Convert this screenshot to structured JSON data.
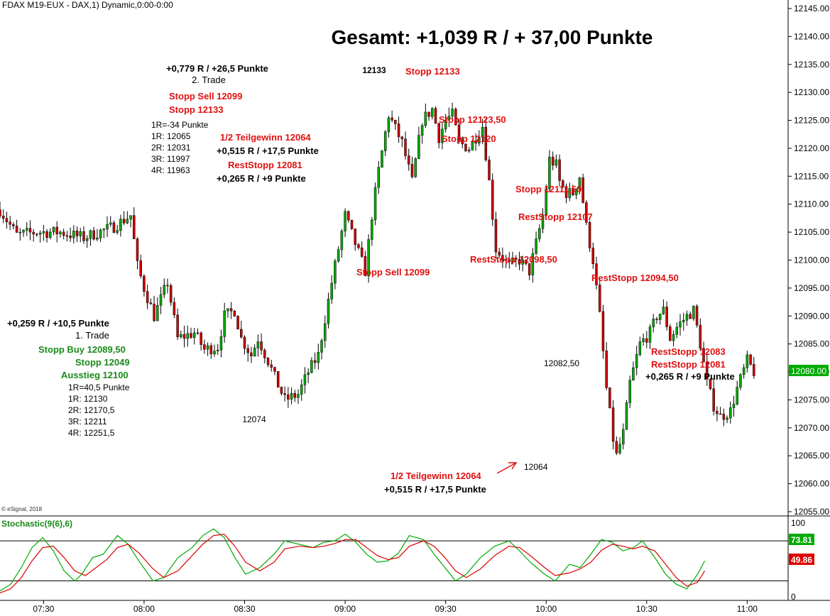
{
  "header": {
    "symbol_text": "FDAX M19-EUX - DAX,1) Dynamic,0:00-0:00"
  },
  "headline": "Gesamt: +1,039 R / + 37,00 Punkte",
  "copyright": "© eSignal, 2018",
  "colors": {
    "up": "#00aa00",
    "down": "#cc0000",
    "annot_red": "#e01010",
    "annot_green": "#1a8a1a",
    "badge": "#00aa00",
    "stoch_k": "#00aa00",
    "stoch_d": "#dd0000"
  },
  "chart_data": [
    {
      "type": "candlestick",
      "y_axis_ticks": [
        "12145.00",
        "12140.00",
        "12135.00",
        "12130.00",
        "12125.00",
        "12120.00",
        "12115.00",
        "12110.00",
        "12105.00",
        "12100.00",
        "12095.00",
        "12090.00",
        "12085.00",
        "12080.00",
        "12075.00",
        "12070.00",
        "12065.00",
        "12060.00",
        "12055.00"
      ],
      "x_axis_ticks": [
        "07:30",
        "08:00",
        "08:30",
        "09:00",
        "09:30",
        "10:00",
        "10:30",
        "11:00"
      ],
      "ylim": [
        12054,
        12146
      ],
      "x_range": [
        "07:17",
        "11:12"
      ],
      "current_price_badge": "12080.00",
      "anchors": [
        [
          "07:17",
          12109
        ],
        [
          "07:22",
          12104.5
        ],
        [
          "07:28",
          12105
        ],
        [
          "07:35",
          12105
        ],
        [
          "07:42",
          12104
        ],
        [
          "07:51",
          12106
        ],
        [
          "07:56",
          12108
        ],
        [
          "07:58",
          12099
        ],
        [
          "08:00",
          12095
        ],
        [
          "08:03",
          12090
        ],
        [
          "08:07",
          12096
        ],
        [
          "08:10",
          12086
        ],
        [
          "08:15",
          12087
        ],
        [
          "08:18",
          12084
        ],
        [
          "08:22",
          12084.5
        ],
        [
          "08:24",
          12090
        ],
        [
          "08:27",
          12091
        ],
        [
          "08:29",
          12086
        ],
        [
          "08:32",
          12083
        ],
        [
          "08:34",
          12086
        ],
        [
          "08:37",
          12082
        ],
        [
          "08:39",
          12079
        ],
        [
          "08:42",
          12075
        ],
        [
          "08:46",
          12076
        ],
        [
          "08:49",
          12080
        ],
        [
          "08:52",
          12083
        ],
        [
          "08:56",
          12096
        ],
        [
          "09:00",
          12108
        ],
        [
          "09:03",
          12103
        ],
        [
          "09:06",
          12098
        ],
        [
          "09:08",
          12108
        ],
        [
          "09:10",
          12116
        ],
        [
          "09:13",
          12126
        ],
        [
          "09:17",
          12121
        ],
        [
          "09:20",
          12114
        ],
        [
          "09:23",
          12125
        ],
        [
          "09:26",
          12127
        ],
        [
          "09:28",
          12122
        ],
        [
          "09:30",
          12125
        ],
        [
          "09:32",
          12126
        ],
        [
          "09:34",
          12121
        ],
        [
          "09:37",
          12120
        ],
        [
          "09:41",
          12124
        ],
        [
          "09:43",
          12114
        ],
        [
          "09:45",
          12102
        ],
        [
          "09:49",
          12099
        ],
        [
          "09:52",
          12100
        ],
        [
          "09:55",
          12098
        ],
        [
          "09:59",
          12108
        ],
        [
          "10:01",
          12118
        ],
        [
          "10:03",
          12117
        ],
        [
          "10:04",
          12114
        ],
        [
          "10:06",
          12112
        ],
        [
          "10:08",
          12112
        ],
        [
          "10:10",
          12115
        ],
        [
          "10:12",
          12106
        ],
        [
          "10:14",
          12100
        ],
        [
          "10:16",
          12090
        ],
        [
          "10:18",
          12077
        ],
        [
          "10:20",
          12068
        ],
        [
          "10:21",
          12065
        ],
        [
          "10:23",
          12069
        ],
        [
          "10:25",
          12078
        ],
        [
          "10:28",
          12085
        ],
        [
          "10:31",
          12087
        ],
        [
          "10:33",
          12090
        ],
        [
          "10:35",
          12091
        ],
        [
          "10:37",
          12086
        ],
        [
          "10:39",
          12088
        ],
        [
          "10:42",
          12090
        ],
        [
          "10:44",
          12091
        ],
        [
          "10:46",
          12085
        ],
        [
          "10:48",
          12078
        ],
        [
          "10:50",
          12074
        ],
        [
          "10:52",
          12072
        ],
        [
          "10:55",
          12073
        ],
        [
          "10:57",
          12077
        ],
        [
          "11:00",
          12082
        ],
        [
          "11:02",
          12080
        ]
      ]
    },
    {
      "type": "line",
      "title": "Stochastic(9(6),6)",
      "y_axis_ticks": [
        "100",
        "0"
      ],
      "ylim": [
        -5,
        110
      ],
      "reference_lines": [
        80,
        20
      ],
      "last_values": [
        "73.81",
        "49.86"
      ],
      "series": [
        {
          "values": [
            [
              0,
              5
            ],
            [
              6,
              15
            ],
            [
              12,
              40
            ],
            [
              18,
              70
            ],
            [
              24,
              85
            ],
            [
              30,
              65
            ],
            [
              36,
              35
            ],
            [
              42,
              20
            ],
            [
              46,
              30
            ],
            [
              52,
              55
            ],
            [
              58,
              60
            ],
            [
              66,
              88
            ],
            [
              72,
              75
            ],
            [
              78,
              50
            ],
            [
              86,
              20
            ],
            [
              92,
              25
            ],
            [
              100,
              55
            ],
            [
              108,
              70
            ],
            [
              114,
              88
            ],
            [
              120,
              98
            ],
            [
              126,
              85
            ],
            [
              132,
              55
            ],
            [
              138,
              30
            ],
            [
              146,
              40
            ],
            [
              154,
              60
            ],
            [
              160,
              80
            ],
            [
              168,
              75
            ],
            [
              176,
              70
            ],
            [
              182,
              78
            ],
            [
              188,
              80
            ],
            [
              194,
              90
            ],
            [
              200,
              78
            ],
            [
              206,
              60
            ],
            [
              212,
              48
            ],
            [
              218,
              50
            ],
            [
              224,
              62
            ],
            [
              230,
              88
            ],
            [
              238,
              82
            ],
            [
              244,
              60
            ],
            [
              250,
              40
            ],
            [
              256,
              20
            ],
            [
              262,
              30
            ],
            [
              270,
              55
            ],
            [
              278,
              72
            ],
            [
              286,
              80
            ],
            [
              292,
              65
            ],
            [
              298,
              48
            ],
            [
              306,
              30
            ],
            [
              312,
              20
            ],
            [
              320,
              45
            ],
            [
              326,
              40
            ],
            [
              332,
              60
            ],
            [
              338,
              82
            ],
            [
              344,
              78
            ],
            [
              350,
              65
            ],
            [
              356,
              70
            ],
            [
              361,
              80
            ],
            [
              368,
              55
            ],
            [
              374,
              30
            ],
            [
              380,
              15
            ],
            [
              386,
              8
            ],
            [
              392,
              30
            ],
            [
              396,
              50
            ]
          ]
        },
        {
          "values": [
            [
              0,
              2
            ],
            [
              6,
              8
            ],
            [
              12,
              25
            ],
            [
              18,
              50
            ],
            [
              24,
              70
            ],
            [
              30,
              72
            ],
            [
              36,
              55
            ],
            [
              42,
              35
            ],
            [
              48,
              28
            ],
            [
              54,
              40
            ],
            [
              60,
              52
            ],
            [
              66,
              70
            ],
            [
              72,
              75
            ],
            [
              78,
              62
            ],
            [
              86,
              38
            ],
            [
              92,
              25
            ],
            [
              100,
              35
            ],
            [
              108,
              58
            ],
            [
              114,
              75
            ],
            [
              120,
              88
            ],
            [
              126,
              90
            ],
            [
              132,
              72
            ],
            [
              138,
              48
            ],
            [
              146,
              35
            ],
            [
              154,
              48
            ],
            [
              160,
              68
            ],
            [
              168,
              72
            ],
            [
              176,
              70
            ],
            [
              182,
              72
            ],
            [
              188,
              76
            ],
            [
              194,
              82
            ],
            [
              200,
              82
            ],
            [
              206,
              70
            ],
            [
              212,
              58
            ],
            [
              218,
              52
            ],
            [
              224,
              55
            ],
            [
              230,
              72
            ],
            [
              238,
              80
            ],
            [
              244,
              72
            ],
            [
              250,
              55
            ],
            [
              256,
              35
            ],
            [
              262,
              25
            ],
            [
              270,
              38
            ],
            [
              278,
              58
            ],
            [
              286,
              72
            ],
            [
              292,
              70
            ],
            [
              298,
              58
            ],
            [
              306,
              40
            ],
            [
              312,
              28
            ],
            [
              320,
              32
            ],
            [
              326,
              38
            ],
            [
              332,
              48
            ],
            [
              338,
              66
            ],
            [
              344,
              75
            ],
            [
              350,
              72
            ],
            [
              356,
              68
            ],
            [
              361,
              72
            ],
            [
              368,
              65
            ],
            [
              374,
              45
            ],
            [
              380,
              25
            ],
            [
              386,
              12
            ],
            [
              392,
              18
            ],
            [
              396,
              35
            ]
          ]
        }
      ]
    }
  ],
  "annotations": {
    "trade2_result": "+0,779 R / +26,5 Punkte",
    "trade2_title": "2. Trade",
    "stopp_sell_a": "Stopp Sell 12099",
    "stopp_12133_a": "Stopp 12133",
    "risk2": [
      "1R=-34 Punkte",
      "1R: 12065",
      "2R: 12031",
      "3R: 11997",
      "4R: 11963"
    ],
    "teilgewinn_a": "1/2 Teilgewinn 12064",
    "partial_a": "+0,515 R / +17,5 Punkte",
    "reststopp_a": "RestStopp 12081",
    "rest_a": "+0,265 R / +9 Punkte",
    "high_label": "12133",
    "stopp_12133_b": "Stopp 12133",
    "stopp_12123": "Stopp 12123,50",
    "stopp_12120": "Stopp 12120",
    "stopp_12111": "Stopp 12111,50",
    "reststopp_12107": "RestStopp 12107",
    "reststopp_12098": "RestStopp 12098,50",
    "stopp_sell_b": "Stopp Sell 12099",
    "reststopp_12094": "RestStopp 12094,50",
    "reststopp_12083": "RestStopp 12083",
    "reststopp_12081": "RestStopp 12081",
    "rest_b": "+0,265 R / +9 Punkte",
    "label_12082": "12082,50",
    "label_12064": "12064",
    "teilgewinn_b": "1/2 Teilgewinn 12064",
    "partial_b": "+0,515 R / +17,5 Punkte",
    "trade1_result": "+0,259 R / +10,5 Punkte",
    "trade1_title": "1. Trade",
    "stopp_buy": "Stopp Buy 12089,50",
    "stopp_12049": "Stopp 12049",
    "ausstieg": "Ausstieg 12100",
    "risk1": [
      "1R=40,5 Punkte",
      "1R: 12130",
      "2R: 12170,5",
      "3R: 12211",
      "4R: 12251,5"
    ],
    "label_12074": "12074"
  }
}
